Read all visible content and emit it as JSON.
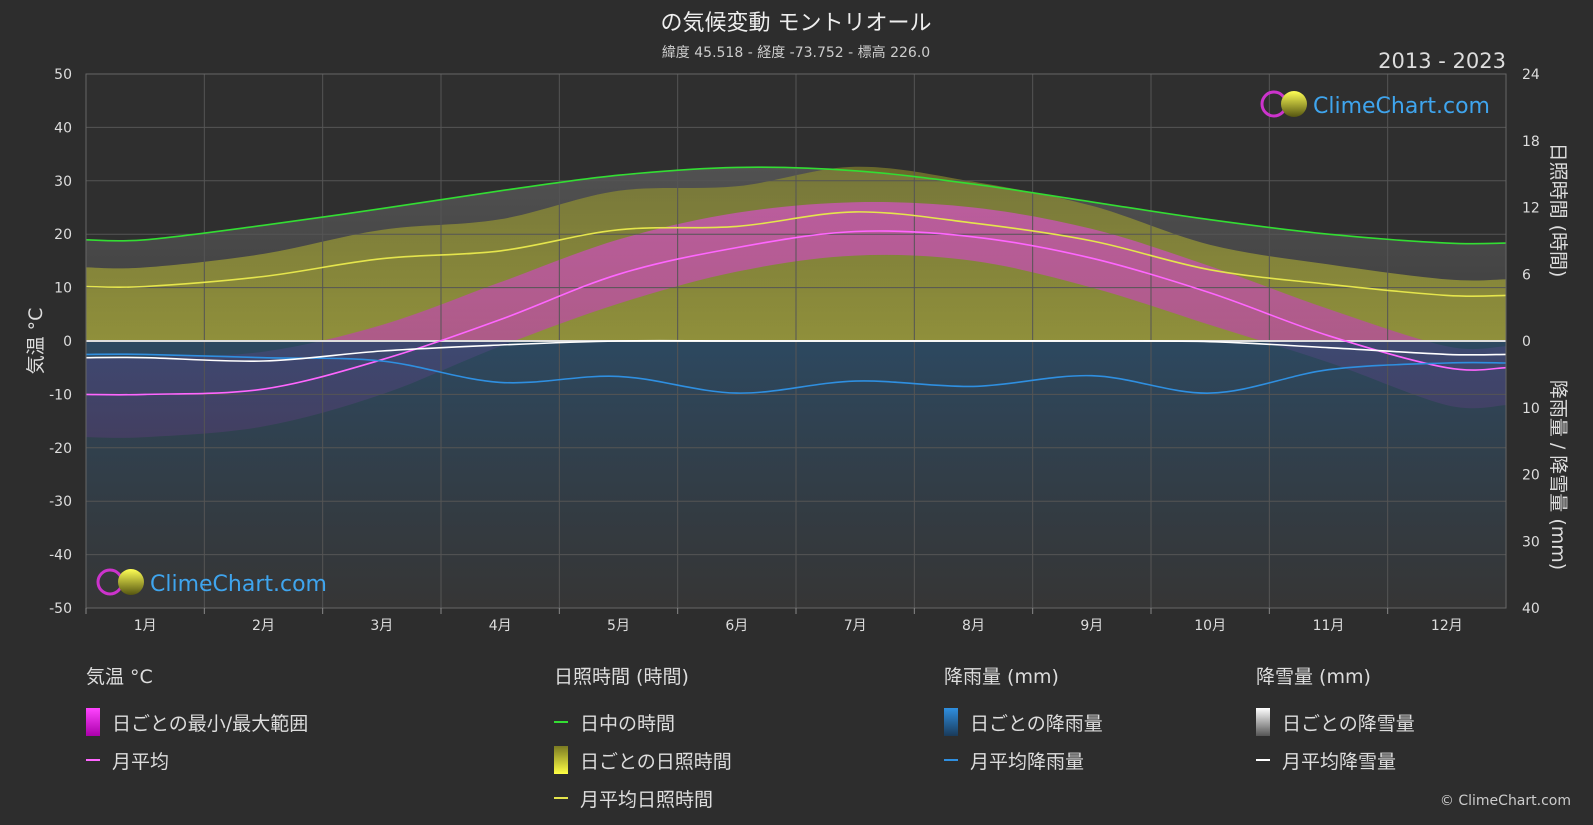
{
  "chart_data": {
    "type": "area",
    "title": "の気候変動 モントリオール",
    "subtitle": "緯度 45.518 - 経度 -73.752 - 標高 226.0",
    "period": "2013 - 2023",
    "watermark": "ClimeChart.com",
    "copyright": "© ClimeChart.com",
    "categories": [
      "1月",
      "2月",
      "3月",
      "4月",
      "5月",
      "6月",
      "7月",
      "8月",
      "9月",
      "10月",
      "11月",
      "12月"
    ],
    "y_left": {
      "label": "気温 °C",
      "range": [
        -50,
        50
      ],
      "ticks": [
        "50",
        "40",
        "30",
        "20",
        "10",
        "0",
        "-10",
        "-20",
        "-30",
        "-40",
        "-50"
      ]
    },
    "y_right_top": {
      "label": "日照時間 (時間)",
      "range": [
        0,
        24
      ],
      "ticks": [
        "24",
        "18",
        "12",
        "6",
        "0"
      ]
    },
    "y_right_bottom": {
      "label": "降雨量 / 降雪量 (mm)",
      "range": [
        0,
        40
      ],
      "ticks": [
        "10",
        "20",
        "30",
        "40"
      ]
    },
    "grid": true,
    "series": [
      {
        "name": "日中の時間",
        "unit": "hours",
        "color": "#33dd33",
        "values": [
          9.1,
          10.4,
          11.9,
          13.5,
          14.9,
          15.6,
          15.3,
          14.1,
          12.5,
          10.9,
          9.6,
          8.8
        ]
      },
      {
        "name": "月平均日照時間",
        "unit": "hours",
        "color": "#e5e54c",
        "values": [
          4.9,
          5.8,
          7.4,
          8.1,
          10.0,
          10.3,
          11.6,
          10.6,
          9.0,
          6.4,
          5.1,
          4.1
        ]
      },
      {
        "name": "月平均",
        "unit": "°C",
        "color": "#ff66ff",
        "values": [
          -10.0,
          -9.0,
          -3.5,
          4.0,
          12.5,
          17.5,
          20.5,
          19.5,
          15.5,
          9.0,
          1.0,
          -5.0
        ]
      },
      {
        "name": "月平均降雨量",
        "unit": "mm",
        "color": "#2f8fe0",
        "values": [
          2.0,
          2.5,
          3.0,
          6.2,
          5.3,
          7.8,
          6.0,
          6.8,
          5.2,
          7.8,
          4.3,
          3.3
        ]
      },
      {
        "name": "月平均降雪量",
        "unit": "mm",
        "color": "#ffffff",
        "values": [
          2.5,
          3.0,
          1.5,
          0.6,
          0.0,
          0.0,
          0.0,
          0.0,
          0.0,
          0.1,
          1.0,
          2.0
        ]
      }
    ],
    "daily_temp_range": {
      "name": "日ごとの最小/最大範囲",
      "min": [
        -18,
        -16,
        -10,
        -1,
        7,
        13,
        16,
        15,
        10,
        3,
        -4,
        -12
      ],
      "max": [
        -3,
        -2,
        3,
        11,
        19,
        24,
        26,
        25,
        21,
        14,
        6,
        -1
      ]
    },
    "legend": [
      {
        "heading": "気温 °C",
        "items": [
          {
            "label": "日ごとの最小/最大範囲",
            "kind": "bar",
            "color": "#dd22dd"
          },
          {
            "label": "月平均",
            "kind": "line",
            "color": "#ff66ff"
          }
        ]
      },
      {
        "heading": "日照時間 (時間)",
        "items": [
          {
            "label": "日中の時間",
            "kind": "line",
            "color": "#33dd33"
          },
          {
            "label": "日ごとの日照時間",
            "kind": "bar",
            "color": "#cccc33"
          },
          {
            "label": "月平均日照時間",
            "kind": "line",
            "color": "#e5e54c"
          }
        ]
      },
      {
        "heading": "降雨量 (mm)",
        "items": [
          {
            "label": "日ごとの降雨量",
            "kind": "bar",
            "color": "#2f8fe0"
          },
          {
            "label": "月平均降雨量",
            "kind": "line",
            "color": "#2f8fe0"
          }
        ]
      },
      {
        "heading": "降雪量 (mm)",
        "items": [
          {
            "label": "日ごとの降雪量",
            "kind": "bar",
            "color": "#dddddd"
          },
          {
            "label": "月平均降雪量",
            "kind": "line",
            "color": "#ffffff"
          }
        ]
      }
    ]
  }
}
